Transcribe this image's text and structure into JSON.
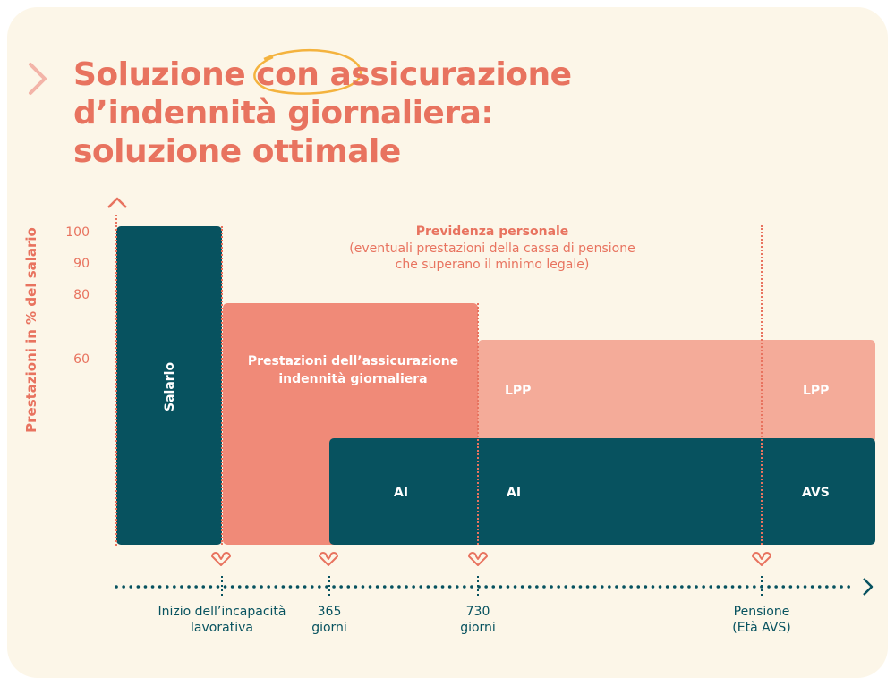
{
  "title": {
    "line1": "Soluzione con assicurazione",
    "line2": "d’indennità giornaliera:",
    "line3": "soluzione ottimale"
  },
  "y_axis": {
    "label": "Prestazioni in % del salario",
    "ticks": [
      "100",
      "90",
      "80",
      "60"
    ]
  },
  "blocks": {
    "salary": "Salario",
    "daily_allowance": "Prestazioni dell’assicurazione indennità giornaliera",
    "ai_1": "AI",
    "ai_2": "AI",
    "lpp_1": "LPP",
    "lpp_2": "LPP",
    "avs": "AVS"
  },
  "personal": {
    "title": "Previdenza personale",
    "line1": "(eventuali prestazioni della cassa di pensione",
    "line2": "che superano il minimo legale)"
  },
  "timeline": [
    {
      "line1": "Inizio dell’incapacità",
      "line2": "lavorativa"
    },
    {
      "line1": "365",
      "line2": "giorni"
    },
    {
      "line1": "730",
      "line2": "giorni"
    },
    {
      "line1": "Pensione",
      "line2": "(Età AVS)"
    }
  ],
  "colors": {
    "dark": "#07525f",
    "salmon": "#f08a78",
    "light_salmon": "#f4ab99",
    "accent": "#e8735f"
  }
}
